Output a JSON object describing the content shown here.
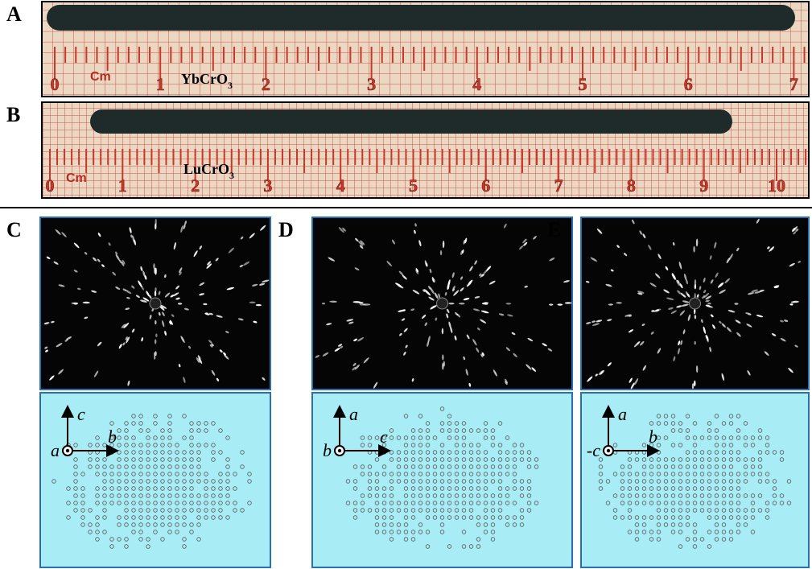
{
  "panels": [
    {
      "label": "A",
      "compound": {
        "formula": "YbCrO",
        "subscript": "3"
      },
      "scale_unit": "Cm",
      "scale_numbers": [
        0,
        1,
        2,
        3,
        4,
        5,
        6,
        7
      ]
    },
    {
      "label": "B",
      "compound": {
        "formula": "LuCrO",
        "subscript": "3"
      },
      "scale_unit": "Cm",
      "scale_numbers": [
        0,
        1,
        2,
        3,
        4,
        5,
        6,
        7,
        8,
        9,
        10
      ]
    }
  ],
  "patterns": [
    {
      "label": "C",
      "axes": {
        "out_of_plane": "a",
        "up": "c",
        "right": "b"
      }
    },
    {
      "label": "D",
      "axes": {
        "out_of_plane": "b",
        "up": "a",
        "right": "c"
      }
    },
    {
      "label": "E",
      "axes": {
        "out_of_plane": "-c",
        "up": "a",
        "right": "b"
      }
    }
  ]
}
